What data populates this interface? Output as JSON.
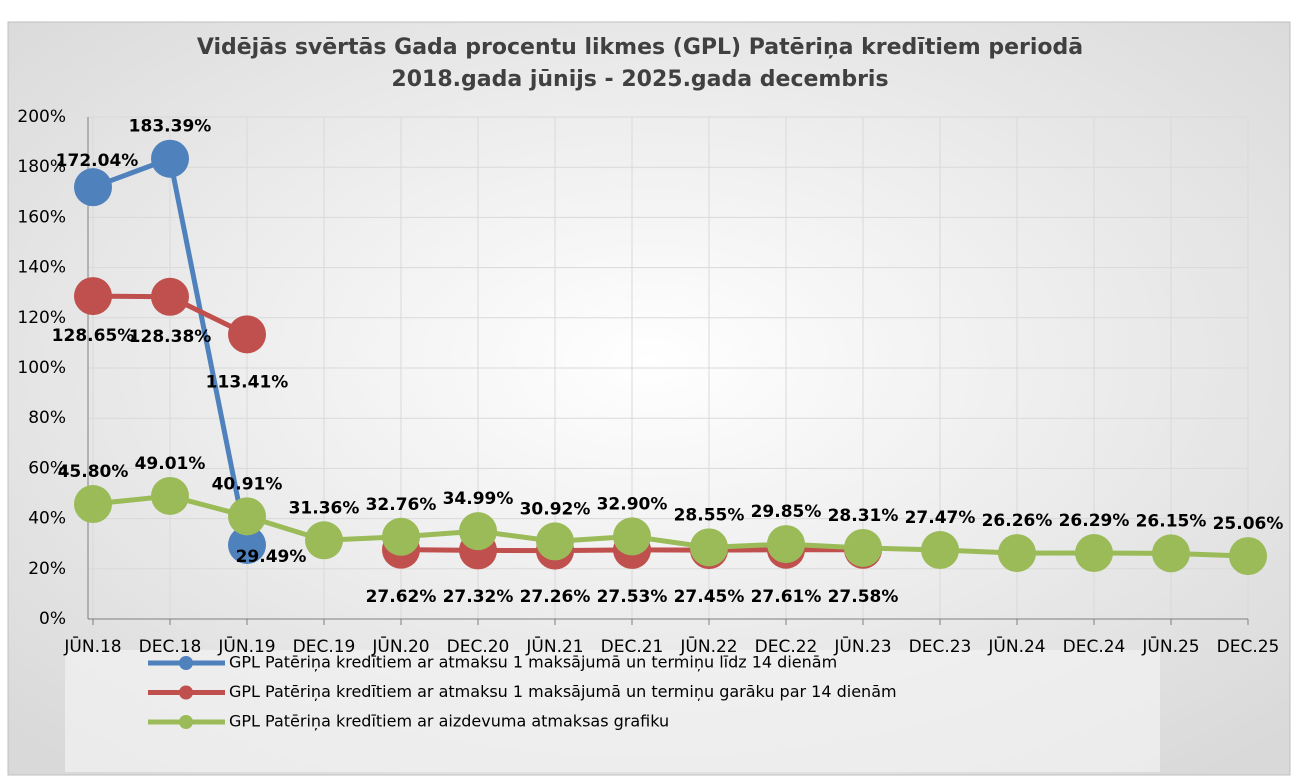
{
  "chart_data": {
    "type": "line",
    "title": "Vidējās svērtās Gada procentu likmes (GPL) Patēriņa kredītiem periodā",
    "subtitle": "2018.gada jūnijs - 2025.gada decembris",
    "categories": [
      "JŪN.18",
      "DEC.18",
      "JŪN.19",
      "DEC.19",
      "JŪN.20",
      "DEC.20",
      "JŪN.21",
      "DEC.21",
      "JŪN.22",
      "DEC.22",
      "JŪN.23",
      "DEC.23",
      "JŪN.24",
      "DEC.24",
      "JŪN.25",
      "DEC.25"
    ],
    "series": [
      {
        "name": "GPL Patēriņa kredītiem ar atmaksu 1 maksājumā un termiņu līdz 14 dienām",
        "color": "#4f81bd",
        "values": [
          172.04,
          183.39,
          29.49,
          null,
          null,
          null,
          null,
          null,
          null,
          null,
          null,
          null,
          null,
          null,
          null,
          null
        ],
        "value_labels": [
          "172.04%",
          "183.39%",
          "29.49%",
          null,
          null,
          null,
          null,
          null,
          null,
          null,
          null,
          null,
          null,
          null,
          null,
          null
        ]
      },
      {
        "name": "GPL Patēriņa kredītiem ar atmaksu 1 maksājumā un termiņu garāku par 14 dienām",
        "color": "#c0504d",
        "values": [
          128.65,
          128.38,
          113.41,
          null,
          27.62,
          27.32,
          27.26,
          27.53,
          27.45,
          27.61,
          27.58,
          null,
          null,
          null,
          null,
          null
        ],
        "value_labels": [
          "128.65%",
          "128.38%",
          "113.41%",
          null,
          "27.62%",
          "27.32%",
          "27.26%",
          "27.53%",
          "27.45%",
          "27.61%",
          "27.58%",
          null,
          null,
          null,
          null,
          null
        ]
      },
      {
        "name": "GPL Patēriņa kredītiem ar aizdevuma atmaksas grafiku",
        "color": "#9bbb59",
        "values": [
          45.8,
          49.01,
          40.91,
          31.36,
          32.76,
          34.99,
          30.92,
          32.9,
          28.55,
          29.85,
          28.31,
          27.47,
          26.26,
          26.29,
          26.15,
          25.06
        ],
        "value_labels": [
          "45.80%",
          "49.01%",
          "40.91%",
          "31.36%",
          "32.76%",
          "34.99%",
          "30.92%",
          "32.90%",
          "28.55%",
          "29.85%",
          "28.31%",
          "27.47%",
          "26.26%",
          "26.29%",
          "26.15%",
          "25.06%"
        ]
      }
    ],
    "ylim": [
      0,
      200
    ],
    "yticks": [
      {
        "value": 0,
        "label": "0%"
      },
      {
        "value": 20,
        "label": "20%"
      },
      {
        "value": 40,
        "label": "40%"
      },
      {
        "value": 60,
        "label": "60%"
      },
      {
        "value": 80,
        "label": "80%"
      },
      {
        "value": 100,
        "label": "100%"
      },
      {
        "value": 120,
        "label": "120%"
      },
      {
        "value": 140,
        "label": "140%"
      },
      {
        "value": 160,
        "label": "160%"
      },
      {
        "value": 180,
        "label": "180%"
      },
      {
        "value": 200,
        "label": "200%"
      }
    ],
    "grid": true,
    "legend": "bottom"
  }
}
